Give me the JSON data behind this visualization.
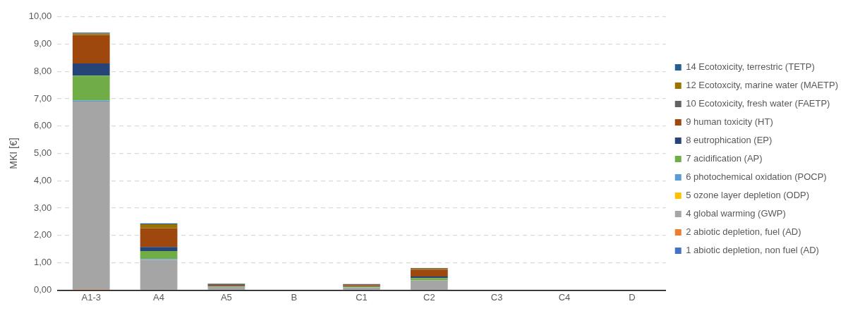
{
  "chart_data": {
    "type": "bar",
    "stacked": true,
    "ylabel": "MKI [€]",
    "categories": [
      "A1-3",
      "A4",
      "A5",
      "B",
      "C1",
      "C2",
      "C3",
      "C4",
      "D"
    ],
    "ylim": [
      0,
      10
    ],
    "yticks": [
      {
        "value": 0,
        "label": "0,00"
      },
      {
        "value": 1,
        "label": "1,00"
      },
      {
        "value": 2,
        "label": "2,00"
      },
      {
        "value": 3,
        "label": "3,00"
      },
      {
        "value": 4,
        "label": "4,00"
      },
      {
        "value": 5,
        "label": "5,00"
      },
      {
        "value": 6,
        "label": "6,00"
      },
      {
        "value": 7,
        "label": "7,00"
      },
      {
        "value": 8,
        "label": "8,00"
      },
      {
        "value": 9,
        "label": "9,00"
      },
      {
        "value": 10,
        "label": "10,00"
      }
    ],
    "grid": "y",
    "legend": "right",
    "series": [
      {
        "name": "1 abiotic depletion, non fuel (AD)",
        "color": "#4472c4",
        "values": [
          0,
          0,
          0,
          0,
          0,
          0,
          0,
          0,
          0
        ]
      },
      {
        "name": "2 abiotic depletion, fuel (AD)",
        "color": "#ed7d31",
        "values": [
          0.03,
          0,
          0,
          0,
          0,
          0,
          0,
          0,
          0
        ]
      },
      {
        "name": "4 global warming (GWP)",
        "color": "#a5a5a5",
        "values": [
          6.87,
          1.11,
          0.12,
          0,
          0.11,
          0.36,
          0,
          0,
          0
        ]
      },
      {
        "name": "5 ozone layer depletion (ODP)",
        "color": "#ffc000",
        "values": [
          0,
          0,
          0,
          0,
          0,
          0,
          0,
          0,
          0
        ]
      },
      {
        "name": "6 photochemical oxidation (POCP)",
        "color": "#5b9bd5",
        "values": [
          0.04,
          0.03,
          0,
          0,
          0,
          null,
          0,
          0,
          0
        ]
      },
      {
        "name": "7 acidification (AP)",
        "color": "#70ad47",
        "values": [
          0.91,
          0.29,
          0.02,
          0,
          0.03,
          0.08,
          0,
          0,
          0
        ]
      },
      {
        "name": "8 eutrophication (EP)",
        "color": "#264478",
        "values": [
          0.44,
          0.15,
          0.01,
          0,
          null,
          0.06,
          0,
          0.02,
          0
        ]
      },
      {
        "name": "9 human toxicity (HT)",
        "color": "#9e480e",
        "values": [
          1.04,
          0.69,
          0.04,
          0,
          0.04,
          0.25,
          0,
          0,
          0
        ]
      },
      {
        "name": "10 Ecotoxicity, fresh water (FAETP)",
        "color": "#636363",
        "values": [
          0.01,
          0,
          0.03,
          0,
          0.04,
          0.03,
          0,
          0,
          0
        ]
      },
      {
        "name": "12 Ecotoxcity, marine water (MAETP)",
        "color": "#997300",
        "values": [
          0.05,
          0.14,
          0.01,
          0,
          0,
          0.03,
          0,
          0,
          0
        ]
      },
      {
        "name": "14 Ecotoxicity, terrestric (TETP)",
        "color": "#255e91",
        "values": [
          0.03,
          0.03,
          0.01,
          0,
          0,
          0,
          0,
          0,
          0
        ]
      }
    ]
  }
}
